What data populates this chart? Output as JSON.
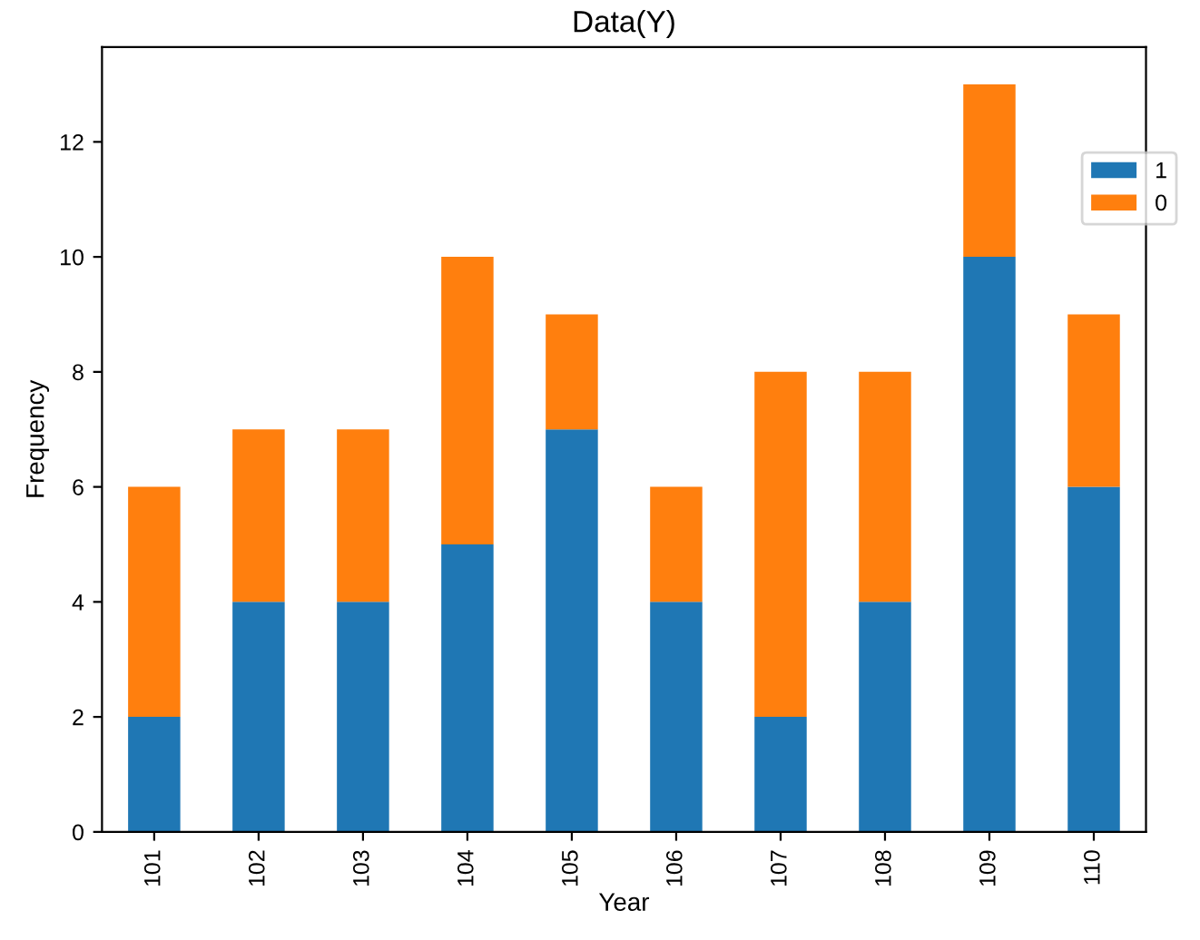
{
  "chart_data": {
    "type": "bar",
    "title": "Data(Y)",
    "xlabel": "Year",
    "ylabel": "Frequency",
    "stacked": true,
    "categories": [
      "101",
      "102",
      "103",
      "104",
      "105",
      "106",
      "107",
      "108",
      "109",
      "110"
    ],
    "series": [
      {
        "name": "1",
        "color": "#1f77b4",
        "values": [
          2,
          4,
          4,
          5,
          7,
          4,
          2,
          4,
          10,
          6
        ]
      },
      {
        "name": "0",
        "color": "#ff7f0e",
        "values": [
          4,
          3,
          3,
          5,
          2,
          2,
          6,
          4,
          3,
          3
        ]
      }
    ],
    "ylim": [
      0,
      13.65
    ],
    "yticks": [
      0,
      2,
      4,
      6,
      8,
      10,
      12
    ],
    "grid": false,
    "legend": "top right"
  }
}
